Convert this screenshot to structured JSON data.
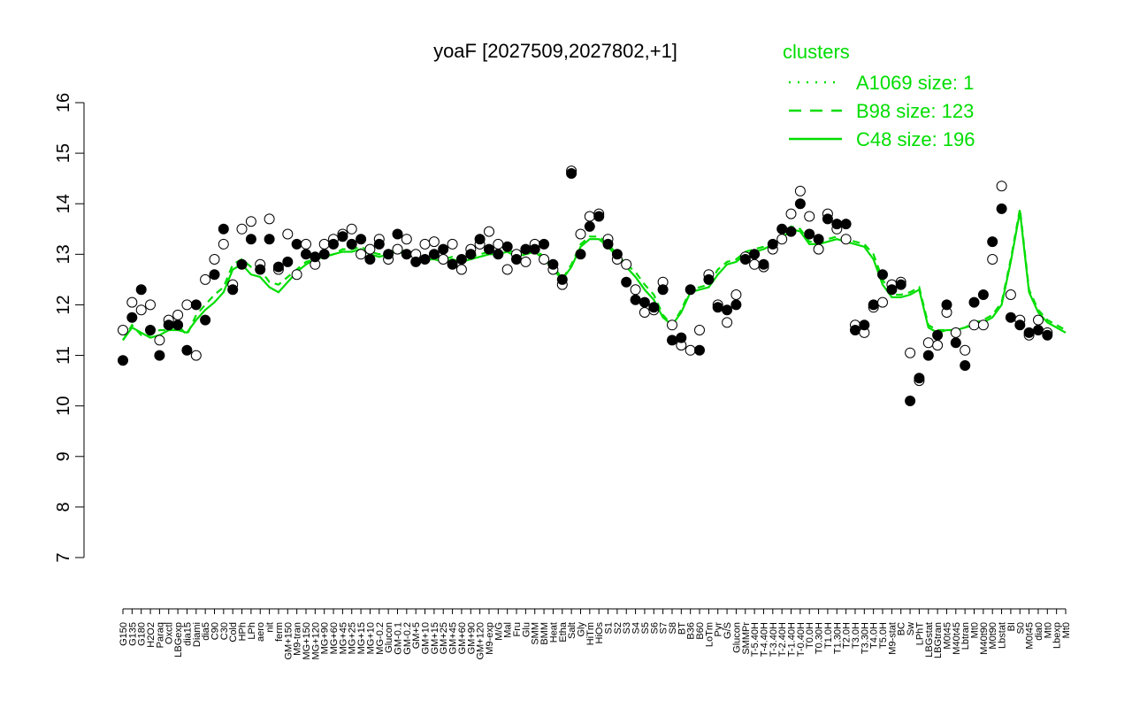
{
  "chart_data": {
    "type": "scatter",
    "title": "yoaF [2027509,2027802,+1]",
    "xlabel": "",
    "ylabel": "",
    "ylim": [
      7,
      16
    ],
    "yticks": [
      7,
      8,
      9,
      10,
      11,
      12,
      13,
      14,
      15,
      16
    ],
    "grid": false,
    "legend": {
      "title": "clusters",
      "placement": "top-right",
      "color": "#00dd00",
      "entries": [
        {
          "label": "A1069 size: 1",
          "style": "dotted"
        },
        {
          "label": "B98 size: 123",
          "style": "dashed"
        },
        {
          "label": "C48 size: 196",
          "style": "solid"
        }
      ]
    },
    "x_tick_labels": [
      "G150",
      "G135",
      "G180",
      "H2O2",
      "Paraq",
      "Oxctl",
      "LBGexp",
      "dia15",
      "Diami",
      "dia5",
      "C90",
      "C30",
      "Cold",
      "HPh",
      "LPh",
      "aero",
      "nit",
      "ferm",
      "GM+150",
      "M9-tran",
      "MG+150",
      "MG+120",
      "MG+90",
      "MG+60",
      "MG+45",
      "MG+25",
      "MG+15",
      "MG+10",
      "MG-0.2",
      "Glucon",
      "GM-0.1",
      "GM-0.2",
      "GM+5",
      "GM+10",
      "GM+15",
      "GM+25",
      "GM+45",
      "GM+60",
      "GM+90",
      "GM+120",
      "M9-exp",
      "M/G",
      "Mal",
      "Fru",
      "Glu",
      "SMM",
      "BMM",
      "Heat",
      "Etha",
      "Salt",
      "Gly",
      "HiTm",
      "HiOs",
      "S1",
      "S2",
      "S3",
      "S4",
      "S5",
      "S6",
      "S7",
      "S8",
      "BT",
      "B36",
      "B60",
      "LoTm",
      "Pyr",
      "G/S",
      "Glucon",
      "SMMPr",
      "T-5.40H",
      "T-4.40H",
      "T-3.40H",
      "T-2.40H",
      "T-1.40H",
      "T-0.40H",
      "T0.0H",
      "T0.30H",
      "T1.0H",
      "T1.30H",
      "T2.0H",
      "T3.0H",
      "T3.30H",
      "T4.0H",
      "T5.0H",
      "M9-stat",
      "BC",
      "Sw",
      "LPhT",
      "LBGstat",
      "LBGtran",
      "M0t45",
      "M40t45",
      "Lbtran",
      "Mt0",
      "M40t90",
      "M0t90",
      "Lbstat",
      "BI",
      "S0",
      "M0t45",
      "dia0",
      "Mt0",
      "Lbexp",
      "Mt0"
    ],
    "points": [
      [
        0,
        11.5
      ],
      [
        0,
        10.9
      ],
      [
        1,
        12.05
      ],
      [
        1,
        11.75
      ],
      [
        2,
        11.9
      ],
      [
        2,
        12.3
      ],
      [
        3,
        12.0
      ],
      [
        3,
        11.5
      ],
      [
        4,
        11.3
      ],
      [
        4,
        11.0
      ],
      [
        5,
        11.7
      ],
      [
        5,
        11.6
      ],
      [
        6,
        11.8
      ],
      [
        6,
        11.6
      ],
      [
        7,
        12.0
      ],
      [
        7,
        11.1
      ],
      [
        8,
        11.0
      ],
      [
        8,
        12.0
      ],
      [
        9,
        12.5
      ],
      [
        9,
        11.7
      ],
      [
        10,
        12.9
      ],
      [
        10,
        12.6
      ],
      [
        11,
        13.2
      ],
      [
        11,
        13.5
      ],
      [
        12,
        12.4
      ],
      [
        12,
        12.3
      ],
      [
        13,
        13.5
      ],
      [
        13,
        12.8
      ],
      [
        14,
        13.65
      ],
      [
        14,
        13.3
      ],
      [
        15,
        12.8
      ],
      [
        15,
        12.7
      ],
      [
        16,
        13.7
      ],
      [
        16,
        13.3
      ],
      [
        17,
        12.7
      ],
      [
        17,
        12.75
      ],
      [
        18,
        13.4
      ],
      [
        18,
        12.85
      ],
      [
        19,
        12.6
      ],
      [
        19,
        13.2
      ],
      [
        20,
        13.2
      ],
      [
        20,
        13.0
      ],
      [
        21,
        12.8
      ],
      [
        21,
        12.95
      ],
      [
        22,
        13.2
      ],
      [
        22,
        13.0
      ],
      [
        23,
        13.3
      ],
      [
        23,
        13.2
      ],
      [
        24,
        13.4
      ],
      [
        24,
        13.35
      ],
      [
        25,
        13.5
      ],
      [
        25,
        13.2
      ],
      [
        26,
        13.0
      ],
      [
        26,
        13.3
      ],
      [
        27,
        13.1
      ],
      [
        27,
        12.9
      ],
      [
        28,
        13.3
      ],
      [
        28,
        13.2
      ],
      [
        29,
        12.9
      ],
      [
        29,
        13.0
      ],
      [
        30,
        13.1
      ],
      [
        30,
        13.4
      ],
      [
        31,
        13.3
      ],
      [
        31,
        13.0
      ],
      [
        32,
        13.0
      ],
      [
        32,
        12.85
      ],
      [
        33,
        13.2
      ],
      [
        33,
        12.9
      ],
      [
        34,
        13.25
      ],
      [
        34,
        13.0
      ],
      [
        35,
        12.9
      ],
      [
        35,
        13.1
      ],
      [
        36,
        13.2
      ],
      [
        36,
        12.8
      ],
      [
        37,
        12.7
      ],
      [
        37,
        12.9
      ],
      [
        38,
        13.1
      ],
      [
        38,
        13.0
      ],
      [
        39,
        13.2
      ],
      [
        39,
        13.3
      ],
      [
        40,
        13.45
      ],
      [
        40,
        13.1
      ],
      [
        41,
        13.2
      ],
      [
        41,
        13.0
      ],
      [
        42,
        12.7
      ],
      [
        42,
        13.15
      ],
      [
        43,
        13.0
      ],
      [
        43,
        12.9
      ],
      [
        44,
        12.85
      ],
      [
        44,
        13.1
      ],
      [
        45,
        13.2
      ],
      [
        45,
        13.1
      ],
      [
        46,
        12.9
      ],
      [
        46,
        13.2
      ],
      [
        47,
        12.7
      ],
      [
        47,
        12.8
      ],
      [
        48,
        12.4
      ],
      [
        48,
        12.5
      ],
      [
        49,
        14.65
      ],
      [
        49,
        14.6
      ],
      [
        50,
        13.4
      ],
      [
        50,
        13.0
      ],
      [
        51,
        13.75
      ],
      [
        51,
        13.55
      ],
      [
        52,
        13.8
      ],
      [
        52,
        13.75
      ],
      [
        53,
        13.3
      ],
      [
        53,
        13.2
      ],
      [
        54,
        12.9
      ],
      [
        54,
        13.0
      ],
      [
        55,
        12.8
      ],
      [
        55,
        12.45
      ],
      [
        56,
        12.3
      ],
      [
        56,
        12.1
      ],
      [
        57,
        11.85
      ],
      [
        57,
        12.05
      ],
      [
        58,
        11.9
      ],
      [
        58,
        11.95
      ],
      [
        59,
        12.45
      ],
      [
        59,
        12.3
      ],
      [
        60,
        11.6
      ],
      [
        60,
        11.3
      ],
      [
        61,
        11.2
      ],
      [
        61,
        11.35
      ],
      [
        62,
        11.1
      ],
      [
        62,
        12.3
      ],
      [
        63,
        11.5
      ],
      [
        63,
        11.1
      ],
      [
        64,
        12.6
      ],
      [
        64,
        12.5
      ],
      [
        65,
        12.0
      ],
      [
        65,
        11.95
      ],
      [
        66,
        11.65
      ],
      [
        66,
        11.9
      ],
      [
        67,
        12.2
      ],
      [
        67,
        12.0
      ],
      [
        68,
        12.95
      ],
      [
        68,
        12.9
      ],
      [
        69,
        12.8
      ],
      [
        69,
        13.0
      ],
      [
        70,
        12.75
      ],
      [
        70,
        12.8
      ],
      [
        71,
        13.1
      ],
      [
        71,
        13.2
      ],
      [
        72,
        13.3
      ],
      [
        72,
        13.5
      ],
      [
        73,
        13.8
      ],
      [
        73,
        13.45
      ],
      [
        74,
        14.25
      ],
      [
        74,
        14.0
      ],
      [
        75,
        13.75
      ],
      [
        75,
        13.4
      ],
      [
        76,
        13.1
      ],
      [
        76,
        13.3
      ],
      [
        77,
        13.8
      ],
      [
        77,
        13.7
      ],
      [
        78,
        13.5
      ],
      [
        78,
        13.6
      ],
      [
        79,
        13.3
      ],
      [
        79,
        13.6
      ],
      [
        80,
        11.6
      ],
      [
        80,
        11.5
      ],
      [
        81,
        11.45
      ],
      [
        81,
        11.6
      ],
      [
        82,
        11.95
      ],
      [
        82,
        12.0
      ],
      [
        83,
        12.05
      ],
      [
        83,
        12.6
      ],
      [
        84,
        12.4
      ],
      [
        84,
        12.3
      ],
      [
        85,
        12.45
      ],
      [
        85,
        12.4
      ],
      [
        86,
        11.05
      ],
      [
        86,
        10.1
      ],
      [
        87,
        10.5
      ],
      [
        87,
        10.55
      ],
      [
        88,
        11.25
      ],
      [
        88,
        11.0
      ],
      [
        89,
        11.2
      ],
      [
        89,
        11.4
      ],
      [
        90,
        11.85
      ],
      [
        90,
        12.0
      ],
      [
        91,
        11.45
      ],
      [
        91,
        11.25
      ],
      [
        92,
        11.1
      ],
      [
        92,
        10.8
      ],
      [
        93,
        11.6
      ],
      [
        93,
        12.05
      ],
      [
        94,
        11.6
      ],
      [
        94,
        12.2
      ],
      [
        95,
        12.9
      ],
      [
        95,
        13.25
      ],
      [
        96,
        14.35
      ],
      [
        96,
        13.9
      ],
      [
        97,
        12.2
      ],
      [
        97,
        11.75
      ],
      [
        98,
        11.7
      ],
      [
        98,
        11.6
      ],
      [
        99,
        11.4
      ],
      [
        99,
        11.45
      ],
      [
        100,
        11.7
      ],
      [
        100,
        11.5
      ],
      [
        101,
        11.45
      ],
      [
        101,
        11.4
      ]
    ],
    "series": [
      {
        "name": "B98 size: 123",
        "style": "dashed",
        "color": "#00dd00",
        "values": [
          11.3,
          11.6,
          11.4,
          11.4,
          11.5,
          11.5,
          11.6,
          11.4,
          11.8,
          12.0,
          12.2,
          12.35,
          12.8,
          12.9,
          12.75,
          12.7,
          12.45,
          12.4,
          12.55,
          12.7,
          12.85,
          12.9,
          12.95,
          13.0,
          13.1,
          13.1,
          13.15,
          13.05,
          13.0,
          13.05,
          13.1,
          13.05,
          13.0,
          12.95,
          12.95,
          12.9,
          12.95,
          12.9,
          12.95,
          13.0,
          13.05,
          13.05,
          13.1,
          13.0,
          13.05,
          13.1,
          12.95,
          12.8,
          12.5,
          12.8,
          13.2,
          13.35,
          13.35,
          13.2,
          13.0,
          12.8,
          12.65,
          12.4,
          12.2,
          11.8,
          11.6,
          11.9,
          12.3,
          12.35,
          12.4,
          12.7,
          12.85,
          12.9,
          13.05,
          13.1,
          13.15,
          13.25,
          13.35,
          13.55,
          13.5,
          13.25,
          13.25,
          13.3,
          13.35,
          13.3,
          13.25,
          13.2,
          13.0,
          12.5,
          12.2,
          12.2,
          12.25,
          12.35,
          11.6,
          11.5,
          11.5,
          11.5,
          11.55,
          11.65,
          11.7,
          11.8,
          12.05,
          12.9,
          13.9,
          12.3,
          11.9,
          11.7,
          11.6,
          11.5
        ]
      },
      {
        "name": "C48 size: 196",
        "style": "solid",
        "color": "#00dd00",
        "values": [
          11.3,
          11.55,
          11.45,
          11.35,
          11.4,
          11.5,
          11.5,
          11.45,
          11.7,
          11.9,
          12.05,
          12.25,
          12.7,
          12.8,
          12.6,
          12.55,
          12.35,
          12.25,
          12.45,
          12.65,
          12.8,
          12.9,
          12.95,
          13.0,
          13.05,
          13.05,
          13.1,
          13.0,
          12.95,
          13.0,
          13.05,
          13.0,
          12.95,
          12.9,
          12.9,
          12.85,
          12.9,
          12.85,
          12.9,
          12.95,
          13.0,
          13.0,
          13.05,
          12.95,
          13.0,
          13.05,
          12.9,
          12.7,
          12.5,
          12.75,
          13.15,
          13.3,
          13.3,
          13.15,
          12.95,
          12.75,
          12.55,
          12.3,
          12.1,
          11.75,
          11.6,
          11.85,
          12.25,
          12.3,
          12.35,
          12.6,
          12.8,
          12.85,
          13.0,
          13.05,
          13.1,
          13.2,
          13.3,
          13.5,
          13.45,
          13.2,
          13.2,
          13.25,
          13.3,
          13.25,
          13.2,
          13.15,
          12.9,
          12.4,
          12.15,
          12.15,
          12.2,
          12.3,
          11.55,
          11.45,
          11.5,
          11.5,
          11.55,
          11.6,
          11.65,
          11.75,
          12.0,
          12.85,
          13.85,
          12.25,
          11.85,
          11.65,
          11.55,
          11.45
        ]
      }
    ]
  }
}
